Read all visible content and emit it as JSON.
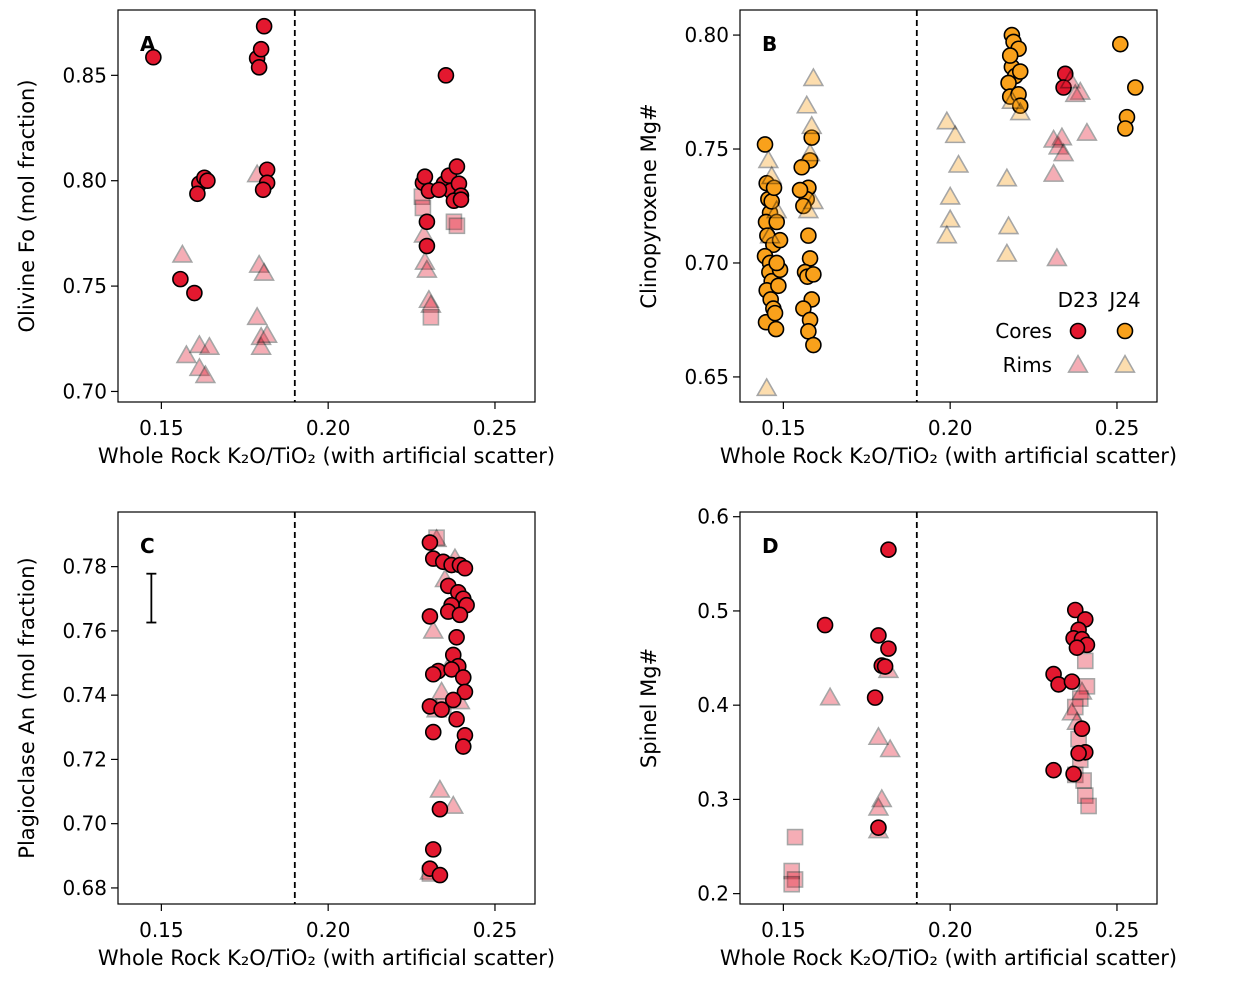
{
  "chart_data": [
    {
      "type": "scatter",
      "label": "A",
      "xlabel": "Whole Rock K₂O/TiO₂ (with artificial scatter)",
      "ylabel": "Olivine Fo (mol fraction)",
      "xlim": [
        0.137,
        0.262
      ],
      "ylim": [
        0.695,
        0.881
      ],
      "xticks": [
        0.15,
        {
          "value": 0.2,
          "label": "0.20"
        },
        0.25
      ],
      "yticks": [
        {
          "value": 0.7,
          "label": "0.70"
        },
        0.75,
        {
          "value": 0.8,
          "label": "0.80"
        },
        0.85
      ],
      "vline": 0.19,
      "series": [
        {
          "marker": "^",
          "color": "#e3182f",
          "alpha": 0.35,
          "x": [
            0.1563,
            0.1575,
            0.1614,
            0.1644,
            0.1614,
            0.1632,
            0.1787,
            0.1793,
            0.1808,
            0.1787,
            0.1799,
            0.1799,
            0.1817,
            0.2287,
            0.229,
            0.2296,
            0.2302,
            0.2308
          ],
          "y": [
            0.7648,
            0.7171,
            0.7219,
            0.721,
            0.711,
            0.7076,
            0.8029,
            0.76,
            0.7562,
            0.7352,
            0.7257,
            0.721,
            0.7267,
            0.7743,
            0.7614,
            0.7576,
            0.7433,
            0.741
          ]
        },
        {
          "marker": "s",
          "color": "#e3182f",
          "alpha": 0.35,
          "x": [
            0.2281,
            0.2284,
            0.2377,
            0.2386,
            0.2308
          ],
          "y": [
            0.7924,
            0.7871,
            0.7805,
            0.7786,
            0.7352
          ]
        },
        {
          "marker": "o",
          "color": "#e3182f",
          "alpha": 1,
          "x": [
            0.1476,
            0.1808,
            0.1787,
            0.1799,
            0.1793,
            0.1817,
            0.1817,
            0.1805,
            0.1614,
            0.1629,
            0.1638,
            0.1608,
            0.1557,
            0.1599,
            0.2353,
            0.2284,
            0.229,
            0.2302,
            0.2296,
            0.2296,
            0.2347,
            0.2362,
            0.2368,
            0.2386,
            0.2392,
            0.2398,
            0.2377,
            0.2332,
            0.2398
          ],
          "y": [
            0.8586,
            0.8733,
            0.8581,
            0.8624,
            0.8538,
            0.8052,
            0.799,
            0.7957,
            0.7986,
            0.8014,
            0.8,
            0.7938,
            0.7533,
            0.7467,
            0.85,
            0.799,
            0.8019,
            0.7952,
            0.7805,
            0.769,
            0.7986,
            0.8024,
            0.7952,
            0.8067,
            0.7986,
            0.7929,
            0.7905,
            0.7957,
            0.791
          ]
        }
      ]
    },
    {
      "type": "scatter",
      "label": "B",
      "xlabel": "Whole Rock K₂O/TiO₂ (with artificial scatter)",
      "ylabel": "Clinopyroxene Mg#",
      "xlim": [
        0.137,
        0.262
      ],
      "ylim": [
        0.639,
        0.811
      ],
      "xticks": [
        0.15,
        {
          "value": 0.2,
          "label": "0.20"
        },
        0.25
      ],
      "yticks": [
        0.65,
        {
          "value": 0.7,
          "label": "0.70"
        },
        0.75,
        {
          "value": 0.8,
          "label": "0.80"
        }
      ],
      "vline": 0.19,
      "legend": {
        "columns": [
          "D23",
          "J24"
        ],
        "rows": [
          "Cores",
          "Rims"
        ]
      },
      "series": [
        {
          "marker": "o",
          "color": "#e3182f",
          "alpha": 1,
          "x": [
            0.2345,
            0.234
          ],
          "y": [
            0.783,
            0.777
          ]
        },
        {
          "marker": "o",
          "color": "#f9a11b",
          "alpha": 1,
          "x": [
            0.1445,
            0.145,
            0.1455,
            0.146,
            0.1448,
            0.1452,
            0.147,
            0.1445,
            0.146,
            0.1458,
            0.1465,
            0.145,
            0.1462,
            0.147,
            0.1448,
            0.1475,
            0.1478,
            0.1465,
            0.1472,
            0.148,
            0.149,
            0.149,
            0.148,
            0.1485,
            0.1585,
            0.158,
            0.1575,
            0.157,
            0.156,
            0.1575,
            0.158,
            0.1565,
            0.1572,
            0.1585,
            0.156,
            0.158,
            0.1575,
            0.159,
            0.155,
            0.1555,
            0.159,
            0.2185,
            0.219,
            0.2205,
            0.2185,
            0.2195,
            0.221,
            0.2175,
            0.218,
            0.2205,
            0.221,
            0.218,
            0.251,
            0.2555,
            0.253,
            0.2525
          ],
          "y": [
            0.752,
            0.735,
            0.728,
            0.722,
            0.718,
            0.712,
            0.708,
            0.703,
            0.7,
            0.696,
            0.692,
            0.688,
            0.684,
            0.68,
            0.674,
            0.678,
            0.671,
            0.727,
            0.733,
            0.718,
            0.71,
            0.697,
            0.7,
            0.69,
            0.755,
            0.745,
            0.733,
            0.728,
            0.725,
            0.712,
            0.702,
            0.696,
            0.694,
            0.684,
            0.68,
            0.675,
            0.67,
            0.664,
            0.732,
            0.742,
            0.695,
            0.8,
            0.797,
            0.794,
            0.786,
            0.782,
            0.784,
            0.779,
            0.773,
            0.774,
            0.769,
            0.791,
            0.796,
            0.777,
            0.764,
            0.759
          ]
        },
        {
          "marker": "^",
          "color": "#e3182f",
          "alpha": 0.35,
          "x": [
            0.236,
            0.239,
            0.241,
            0.2375,
            0.231,
            0.2325,
            0.234,
            0.231,
            0.232,
            0.2335
          ],
          "y": [
            0.78,
            0.775,
            0.757,
            0.774,
            0.754,
            0.751,
            0.748,
            0.739,
            0.702,
            0.755
          ]
        },
        {
          "marker": "^",
          "color": "#f9a11b",
          "alpha": 0.35,
          "x": [
            0.145,
            0.1455,
            0.157,
            0.159,
            0.1585,
            0.158,
            0.159,
            0.1575,
            0.146,
            0.1465,
            0.148,
            0.199,
            0.2015,
            0.2,
            0.2,
            0.199,
            0.2025,
            0.217,
            0.2175,
            0.217,
            0.221,
            0.2185
          ],
          "y": [
            0.645,
            0.745,
            0.769,
            0.781,
            0.76,
            0.748,
            0.727,
            0.723,
            0.712,
            0.738,
            0.723,
            0.762,
            0.756,
            0.729,
            0.719,
            0.712,
            0.743,
            0.737,
            0.716,
            0.704,
            0.766,
            0.771
          ]
        }
      ]
    },
    {
      "type": "scatter",
      "label": "C",
      "xlabel": "Whole Rock K₂O/TiO₂ (with artificial scatter)",
      "ylabel": "Plagioclase An (mol fraction)",
      "xlim": [
        0.137,
        0.262
      ],
      "ylim": [
        0.675,
        0.797
      ],
      "xticks": [
        0.15,
        {
          "value": 0.2,
          "label": "0.20"
        },
        0.25
      ],
      "yticks": [
        0.68,
        {
          "value": 0.7,
          "label": "0.70"
        },
        0.72,
        0.74,
        0.76,
        0.78
      ],
      "vline": 0.19,
      "errorbar": {
        "x": 0.147,
        "y": 0.7702,
        "err": 0.0076
      },
      "series": [
        {
          "marker": "^",
          "color": "#e3182f",
          "alpha": 0.35,
          "x": [
            0.2325,
            0.238,
            0.235,
            0.2315,
            0.234,
            0.2365,
            0.2325,
            0.2335,
            0.2375,
            0.2305,
            0.2395
          ],
          "y": [
            0.7885,
            0.7825,
            0.776,
            0.76,
            0.741,
            0.7495,
            0.7355,
            0.7105,
            0.7055,
            0.685,
            0.738
          ]
        },
        {
          "marker": "s",
          "color": "#e3182f",
          "alpha": 0.35,
          "x": [
            0.2325,
            0.2345,
            0.2305
          ],
          "y": [
            0.789,
            0.7365,
            0.6845
          ]
        },
        {
          "marker": "o",
          "color": "#e3182f",
          "alpha": 1,
          "x": [
            0.2305,
            0.2315,
            0.2345,
            0.237,
            0.2395,
            0.241,
            0.236,
            0.239,
            0.2405,
            0.237,
            0.2415,
            0.236,
            0.2395,
            0.2305,
            0.2385,
            0.2375,
            0.239,
            0.233,
            0.2315,
            0.237,
            0.2405,
            0.241,
            0.2375,
            0.2305,
            0.234,
            0.2385,
            0.241,
            0.2405,
            0.2315,
            0.2335,
            0.2315,
            0.2305,
            0.2335
          ],
          "y": [
            0.7875,
            0.7825,
            0.7815,
            0.7805,
            0.7805,
            0.7795,
            0.774,
            0.772,
            0.77,
            0.768,
            0.768,
            0.766,
            0.765,
            0.7645,
            0.758,
            0.7525,
            0.749,
            0.7475,
            0.7465,
            0.748,
            0.7455,
            0.741,
            0.7385,
            0.7365,
            0.7355,
            0.7325,
            0.7275,
            0.724,
            0.7285,
            0.7045,
            0.692,
            0.686,
            0.684
          ]
        }
      ]
    },
    {
      "type": "scatter",
      "label": "D",
      "xlabel": "Whole Rock K₂O/TiO₂ (with artificial scatter)",
      "ylabel": "Spinel Mg#",
      "xlim": [
        0.137,
        0.262
      ],
      "ylim": [
        0.189,
        0.605
      ],
      "xticks": [
        0.15,
        {
          "value": 0.2,
          "label": "0.20"
        },
        0.25
      ],
      "yticks": [
        0.2,
        0.3,
        0.4,
        0.5,
        0.6
      ],
      "vline": 0.19,
      "series": [
        {
          "marker": "s",
          "color": "#e3182f",
          "alpha": 0.35,
          "x": [
            0.1535,
            0.1525,
            0.1535,
            0.1525,
            0.2405,
            0.241,
            0.239,
            0.2375,
            0.2385,
            0.239,
            0.2375,
            0.24,
            0.2405,
            0.2415
          ],
          "y": [
            0.26,
            0.224,
            0.215,
            0.21,
            0.447,
            0.42,
            0.407,
            0.398,
            0.364,
            0.342,
            0.326,
            0.32,
            0.304,
            0.293
          ]
        },
        {
          "marker": "^",
          "color": "#e3182f",
          "alpha": 0.35,
          "x": [
            0.164,
            0.1785,
            0.1795,
            0.1785,
            0.1785,
            0.1815,
            0.182,
            0.2365,
            0.238,
            0.2395
          ],
          "y": [
            0.408,
            0.366,
            0.3,
            0.291,
            0.267,
            0.437,
            0.353,
            0.392,
            0.382,
            0.414
          ]
        },
        {
          "marker": "o",
          "color": "#e3182f",
          "alpha": 1,
          "x": [
            0.1625,
            0.1815,
            0.1785,
            0.1815,
            0.1795,
            0.1805,
            0.1775,
            0.1785,
            0.2375,
            0.2405,
            0.2385,
            0.237,
            0.2395,
            0.241,
            0.238,
            0.231,
            0.2325,
            0.2365,
            0.2395,
            0.2405,
            0.2385,
            0.231,
            0.237
          ],
          "y": [
            0.485,
            0.565,
            0.474,
            0.46,
            0.442,
            0.441,
            0.408,
            0.27,
            0.501,
            0.491,
            0.48,
            0.471,
            0.47,
            0.464,
            0.461,
            0.433,
            0.422,
            0.425,
            0.375,
            0.35,
            0.349,
            0.331,
            0.327
          ]
        }
      ]
    }
  ]
}
